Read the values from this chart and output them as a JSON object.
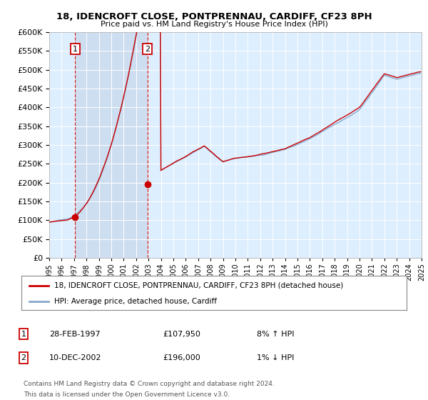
{
  "title": "18, IDENCROFT CLOSE, PONTPRENNAU, CARDIFF, CF23 8PH",
  "subtitle": "Price paid vs. HM Land Registry's House Price Index (HPI)",
  "red_label": "18, IDENCROFT CLOSE, PONTPRENNAU, CARDIFF, CF23 8PH (detached house)",
  "blue_label": "HPI: Average price, detached house, Cardiff",
  "transaction1_date": "28-FEB-1997",
  "transaction1_price": 107950,
  "transaction1_hpi": "8% ↑ HPI",
  "transaction2_date": "10-DEC-2002",
  "transaction2_price": 196000,
  "transaction2_hpi": "1% ↓ HPI",
  "footnote1": "Contains HM Land Registry data © Crown copyright and database right 2024.",
  "footnote2": "This data is licensed under the Open Government Licence v3.0.",
  "ylim": [
    0,
    600000
  ],
  "yticks": [
    0,
    50000,
    100000,
    150000,
    200000,
    250000,
    300000,
    350000,
    400000,
    450000,
    500000,
    550000,
    600000
  ],
  "plot_bg": "#ddeeff",
  "shade_bg": "#ccddf0",
  "red_color": "#cc0000",
  "blue_color": "#88aacc",
  "vline_color": "#cc0000"
}
